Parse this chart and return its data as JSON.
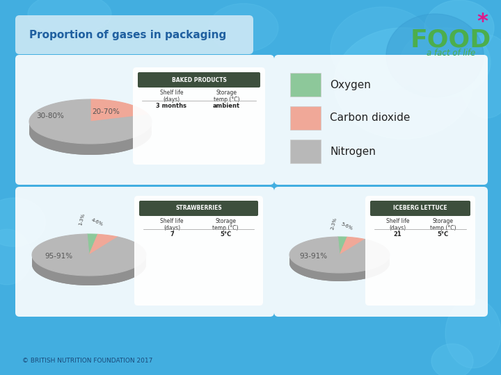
{
  "bg_color": "#42aee0",
  "title": "Proportion of gases in packaging",
  "copyright": "© BRITISH NUTRITION FOUNDATION 2017",
  "baked": {
    "label": "BAKED PRODUCTS",
    "slices": [
      20,
      80
    ],
    "labels": [
      "20-70%",
      "30-80%"
    ],
    "colors": [
      "#f0a898",
      "#b8b8b8"
    ],
    "shelf_life": "3 months",
    "storage_temp": "ambient"
  },
  "strawberries": {
    "label": "STRAWBERRIES",
    "slices": [
      3,
      6,
      91
    ],
    "labels": [
      "1-3%",
      "4-6%",
      "95-91%"
    ],
    "colors": [
      "#8dc89a",
      "#f0a898",
      "#b8b8b8"
    ],
    "shelf_life": "7",
    "storage_temp": "5°C"
  },
  "iceberg": {
    "label": "ICEBERG LETTUCE",
    "slices": [
      3,
      6,
      91
    ],
    "labels": [
      "2-3%",
      "5-6%",
      "93-91%"
    ],
    "colors": [
      "#8dc89a",
      "#f0a898",
      "#b8b8b8"
    ],
    "shelf_life": "21",
    "storage_temp": "5°C"
  },
  "legend": {
    "oxygen_color": "#8dc89a",
    "co2_color": "#f0a898",
    "nitrogen_color": "#b8b8b8",
    "oxygen_label": "Oxygen",
    "co2_label": "Carbon dioxide",
    "nitrogen_label": "Nitrogen"
  }
}
